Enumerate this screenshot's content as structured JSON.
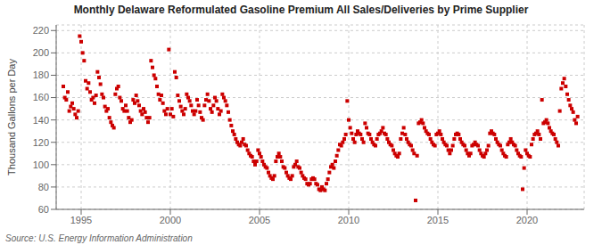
{
  "chart_data": {
    "type": "scatter",
    "title": "Monthly Delaware Reformulated Gasoline Premium All Sales/Deliveries by Prime Supplier",
    "y_label": "Thousand Gallons per Day",
    "annotations": [
      "Source: U.S. Energy Information Administration"
    ],
    "color": "#cc0000",
    "marker": "square",
    "grid": true,
    "xlim": [
      1993.6,
      2023.2
    ],
    "xticks": [
      1995,
      2000,
      2005,
      2010,
      2015,
      2020
    ],
    "ylim": [
      60,
      225
    ],
    "yticks": [
      60,
      80,
      100,
      120,
      140,
      160,
      180,
      200,
      220
    ],
    "x": [
      1994.0,
      1994.083,
      1994.167,
      1994.25,
      1994.333,
      1994.417,
      1994.5,
      1994.583,
      1994.667,
      1994.75,
      1994.833,
      1994.917,
      1995.0,
      1995.083,
      1995.167,
      1995.25,
      1995.333,
      1995.417,
      1995.5,
      1995.583,
      1995.667,
      1995.75,
      1995.833,
      1995.917,
      1996.0,
      1996.083,
      1996.167,
      1996.25,
      1996.333,
      1996.417,
      1996.5,
      1996.583,
      1996.667,
      1996.75,
      1996.833,
      1996.917,
      1997.0,
      1997.083,
      1997.167,
      1997.25,
      1997.333,
      1997.417,
      1997.5,
      1997.583,
      1997.667,
      1997.75,
      1997.833,
      1997.917,
      1998.0,
      1998.083,
      1998.167,
      1998.25,
      1998.333,
      1998.417,
      1998.5,
      1998.583,
      1998.667,
      1998.75,
      1998.833,
      1998.917,
      1999.0,
      1999.083,
      1999.167,
      1999.25,
      1999.333,
      1999.417,
      1999.5,
      1999.583,
      1999.667,
      1999.75,
      1999.833,
      1999.917,
      2000.0,
      2000.083,
      2000.167,
      2000.25,
      2000.333,
      2000.417,
      2000.5,
      2000.583,
      2000.667,
      2000.75,
      2000.833,
      2000.917,
      2001.0,
      2001.083,
      2001.167,
      2001.25,
      2001.333,
      2001.417,
      2001.5,
      2001.583,
      2001.667,
      2001.75,
      2001.833,
      2001.917,
      2002.0,
      2002.083,
      2002.167,
      2002.25,
      2002.333,
      2002.417,
      2002.5,
      2002.583,
      2002.667,
      2002.75,
      2002.833,
      2002.917,
      2003.0,
      2003.083,
      2003.167,
      2003.25,
      2003.333,
      2003.417,
      2003.5,
      2003.583,
      2003.667,
      2003.75,
      2003.833,
      2003.917,
      2004.0,
      2004.083,
      2004.167,
      2004.25,
      2004.333,
      2004.417,
      2004.5,
      2004.583,
      2004.667,
      2004.75,
      2004.833,
      2004.917,
      2005.0,
      2005.083,
      2005.167,
      2005.25,
      2005.333,
      2005.417,
      2005.5,
      2005.583,
      2005.667,
      2005.75,
      2005.833,
      2005.917,
      2006.0,
      2006.083,
      2006.167,
      2006.25,
      2006.333,
      2006.417,
      2006.5,
      2006.583,
      2006.667,
      2006.75,
      2006.833,
      2006.917,
      2007.0,
      2007.083,
      2007.167,
      2007.25,
      2007.333,
      2007.417,
      2007.5,
      2007.583,
      2007.667,
      2007.75,
      2007.833,
      2007.917,
      2008.0,
      2008.083,
      2008.167,
      2008.25,
      2008.333,
      2008.417,
      2008.5,
      2008.583,
      2008.667,
      2008.75,
      2008.833,
      2008.917,
      2009.0,
      2009.083,
      2009.167,
      2009.25,
      2009.333,
      2009.417,
      2009.5,
      2009.583,
      2009.667,
      2009.75,
      2009.833,
      2009.917,
      2010.0,
      2010.083,
      2010.167,
      2010.25,
      2010.333,
      2010.417,
      2010.5,
      2010.583,
      2010.667,
      2010.75,
      2010.833,
      2010.917,
      2011.0,
      2011.083,
      2011.167,
      2011.25,
      2011.333,
      2011.417,
      2011.5,
      2011.583,
      2011.667,
      2011.75,
      2011.833,
      2011.917,
      2012.0,
      2012.083,
      2012.167,
      2012.25,
      2012.333,
      2012.417,
      2012.5,
      2012.583,
      2012.667,
      2012.75,
      2012.833,
      2012.917,
      2013.0,
      2013.083,
      2013.167,
      2013.25,
      2013.333,
      2013.417,
      2013.5,
      2013.583,
      2013.667,
      2013.75,
      2013.833,
      2013.917,
      2014.0,
      2014.083,
      2014.167,
      2014.25,
      2014.333,
      2014.417,
      2014.5,
      2014.583,
      2014.667,
      2014.75,
      2014.833,
      2014.917,
      2015.0,
      2015.083,
      2015.167,
      2015.25,
      2015.333,
      2015.417,
      2015.5,
      2015.583,
      2015.667,
      2015.75,
      2015.833,
      2015.917,
      2016.0,
      2016.083,
      2016.167,
      2016.25,
      2016.333,
      2016.417,
      2016.5,
      2016.583,
      2016.667,
      2016.75,
      2016.833,
      2016.917,
      2017.0,
      2017.083,
      2017.167,
      2017.25,
      2017.333,
      2017.417,
      2017.5,
      2017.583,
      2017.667,
      2017.75,
      2017.833,
      2017.917,
      2018.0,
      2018.083,
      2018.167,
      2018.25,
      2018.333,
      2018.417,
      2018.5,
      2018.583,
      2018.667,
      2018.75,
      2018.833,
      2018.917,
      2019.0,
      2019.083,
      2019.167,
      2019.25,
      2019.333,
      2019.417,
      2019.5,
      2019.583,
      2019.667,
      2019.75,
      2019.833,
      2019.917,
      2020.0,
      2020.083,
      2020.167,
      2020.25,
      2020.333,
      2020.417,
      2020.5,
      2020.583,
      2020.667,
      2020.75,
      2020.833,
      2020.917,
      2021.0,
      2021.083,
      2021.167,
      2021.25,
      2021.333,
      2021.417,
      2021.5,
      2021.583,
      2021.667,
      2021.75,
      2021.833,
      2021.917,
      2022.0,
      2022.083,
      2022.167,
      2022.25,
      2022.333,
      2022.417,
      2022.5,
      2022.583,
      2022.667,
      2022.75,
      2022.833
    ],
    "values": [
      170,
      160,
      158,
      165,
      148,
      152,
      155,
      150,
      145,
      142,
      148,
      215,
      210,
      200,
      193,
      175,
      168,
      173,
      165,
      158,
      160,
      155,
      162,
      183,
      178,
      172,
      163,
      160,
      152,
      148,
      150,
      142,
      138,
      135,
      133,
      163,
      168,
      170,
      160,
      157,
      150,
      148,
      153,
      148,
      142,
      138,
      140,
      158,
      155,
      162,
      157,
      153,
      148,
      145,
      150,
      147,
      142,
      138,
      142,
      193,
      187,
      180,
      177,
      170,
      163,
      158,
      162,
      155,
      148,
      145,
      150,
      203,
      145,
      150,
      143,
      183,
      178,
      162,
      157,
      152,
      148,
      145,
      150,
      163,
      160,
      157,
      153,
      148,
      145,
      148,
      158,
      153,
      147,
      142,
      140,
      153,
      158,
      163,
      157,
      150,
      147,
      153,
      160,
      157,
      150,
      145,
      148,
      163,
      160,
      157,
      153,
      147,
      140,
      135,
      130,
      127,
      123,
      120,
      118,
      117,
      120,
      123,
      118,
      117,
      113,
      110,
      108,
      107,
      103,
      100,
      103,
      113,
      110,
      107,
      103,
      100,
      98,
      97,
      93,
      90,
      88,
      87,
      90,
      103,
      107,
      110,
      107,
      103,
      98,
      97,
      93,
      90,
      88,
      87,
      90,
      98,
      100,
      103,
      98,
      97,
      93,
      90,
      88,
      87,
      83,
      82,
      83,
      87,
      88,
      87,
      83,
      82,
      78,
      77,
      80,
      78,
      77,
      83,
      87,
      93,
      98,
      100,
      97,
      103,
      108,
      113,
      118,
      117,
      120,
      123,
      127,
      157,
      140,
      133,
      128,
      123,
      120,
      127,
      130,
      128,
      127,
      123,
      120,
      137,
      133,
      128,
      127,
      123,
      120,
      118,
      117,
      123,
      127,
      128,
      130,
      133,
      128,
      127,
      123,
      120,
      118,
      117,
      113,
      110,
      108,
      107,
      110,
      123,
      128,
      133,
      127,
      123,
      120,
      118,
      117,
      113,
      110,
      68,
      108,
      137,
      138,
      140,
      137,
      133,
      130,
      128,
      127,
      123,
      120,
      118,
      117,
      127,
      128,
      130,
      127,
      123,
      120,
      118,
      117,
      113,
      110,
      113,
      117,
      123,
      127,
      128,
      127,
      123,
      120,
      118,
      117,
      113,
      110,
      108,
      110,
      117,
      118,
      120,
      118,
      117,
      113,
      110,
      108,
      107,
      110,
      113,
      117,
      128,
      130,
      128,
      127,
      123,
      120,
      118,
      117,
      113,
      110,
      108,
      107,
      118,
      120,
      123,
      120,
      118,
      117,
      113,
      110,
      108,
      107,
      78,
      97,
      113,
      110,
      108,
      107,
      118,
      123,
      127,
      128,
      130,
      127,
      123,
      158,
      137,
      138,
      140,
      137,
      133,
      130,
      128,
      127,
      123,
      120,
      117,
      148,
      168,
      173,
      177,
      170,
      163,
      158,
      153,
      150,
      147,
      140,
      137,
      143
    ]
  }
}
